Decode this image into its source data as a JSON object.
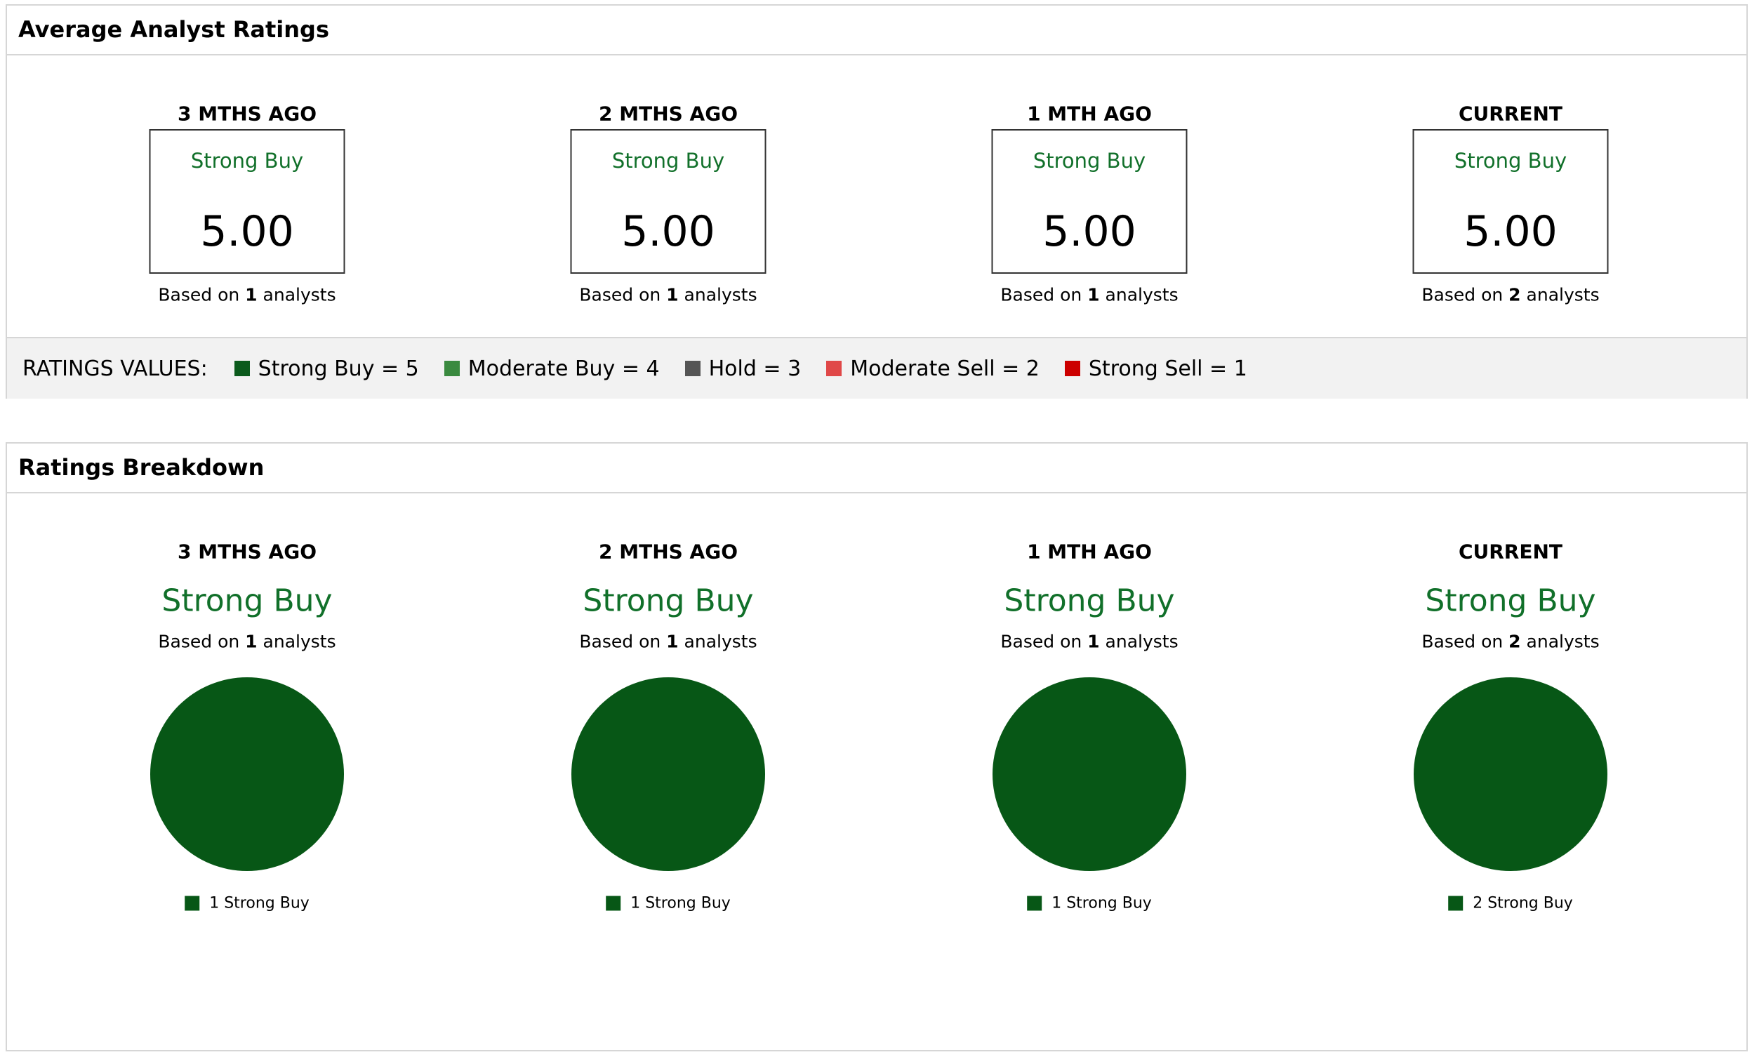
{
  "based_on": "Based on",
  "analysts": "analysts",
  "average": {
    "title": "Average Analyst Ratings",
    "periods": [
      {
        "label": "3 MTHS AGO",
        "rating": "Strong Buy",
        "score": "5.00",
        "count": 1
      },
      {
        "label": "2 MTHS AGO",
        "rating": "Strong Buy",
        "score": "5.00",
        "count": 1
      },
      {
        "label": "1 MTH AGO",
        "rating": "Strong Buy",
        "score": "5.00",
        "count": 1
      },
      {
        "label": "CURRENT",
        "rating": "Strong Buy",
        "score": "5.00",
        "count": 2
      }
    ],
    "ratings_values": {
      "label": "RATINGS VALUES:",
      "items": [
        {
          "label": "Strong Buy = 5",
          "color": "#0b5a1c"
        },
        {
          "label": "Moderate Buy = 4",
          "color": "#3a8a3f"
        },
        {
          "label": "Hold = 3",
          "color": "#555555"
        },
        {
          "label": "Moderate Sell = 2",
          "color": "#e04848"
        },
        {
          "label": "Strong Sell = 1",
          "color": "#cc0000"
        }
      ]
    }
  },
  "breakdown": {
    "title": "Ratings Breakdown",
    "periods": [
      {
        "label": "3 MTHS AGO",
        "rating": "Strong Buy",
        "count": 1,
        "slices": [
          {
            "name": "Strong Buy",
            "count": 1,
            "color": "#075716"
          }
        ]
      },
      {
        "label": "2 MTHS AGO",
        "rating": "Strong Buy",
        "count": 1,
        "slices": [
          {
            "name": "Strong Buy",
            "count": 1,
            "color": "#075716"
          }
        ]
      },
      {
        "label": "1 MTH AGO",
        "rating": "Strong Buy",
        "count": 1,
        "slices": [
          {
            "name": "Strong Buy",
            "count": 1,
            "color": "#075716"
          }
        ]
      },
      {
        "label": "CURRENT",
        "rating": "Strong Buy",
        "count": 2,
        "slices": [
          {
            "name": "Strong Buy",
            "count": 2,
            "color": "#075716"
          }
        ]
      }
    ]
  }
}
